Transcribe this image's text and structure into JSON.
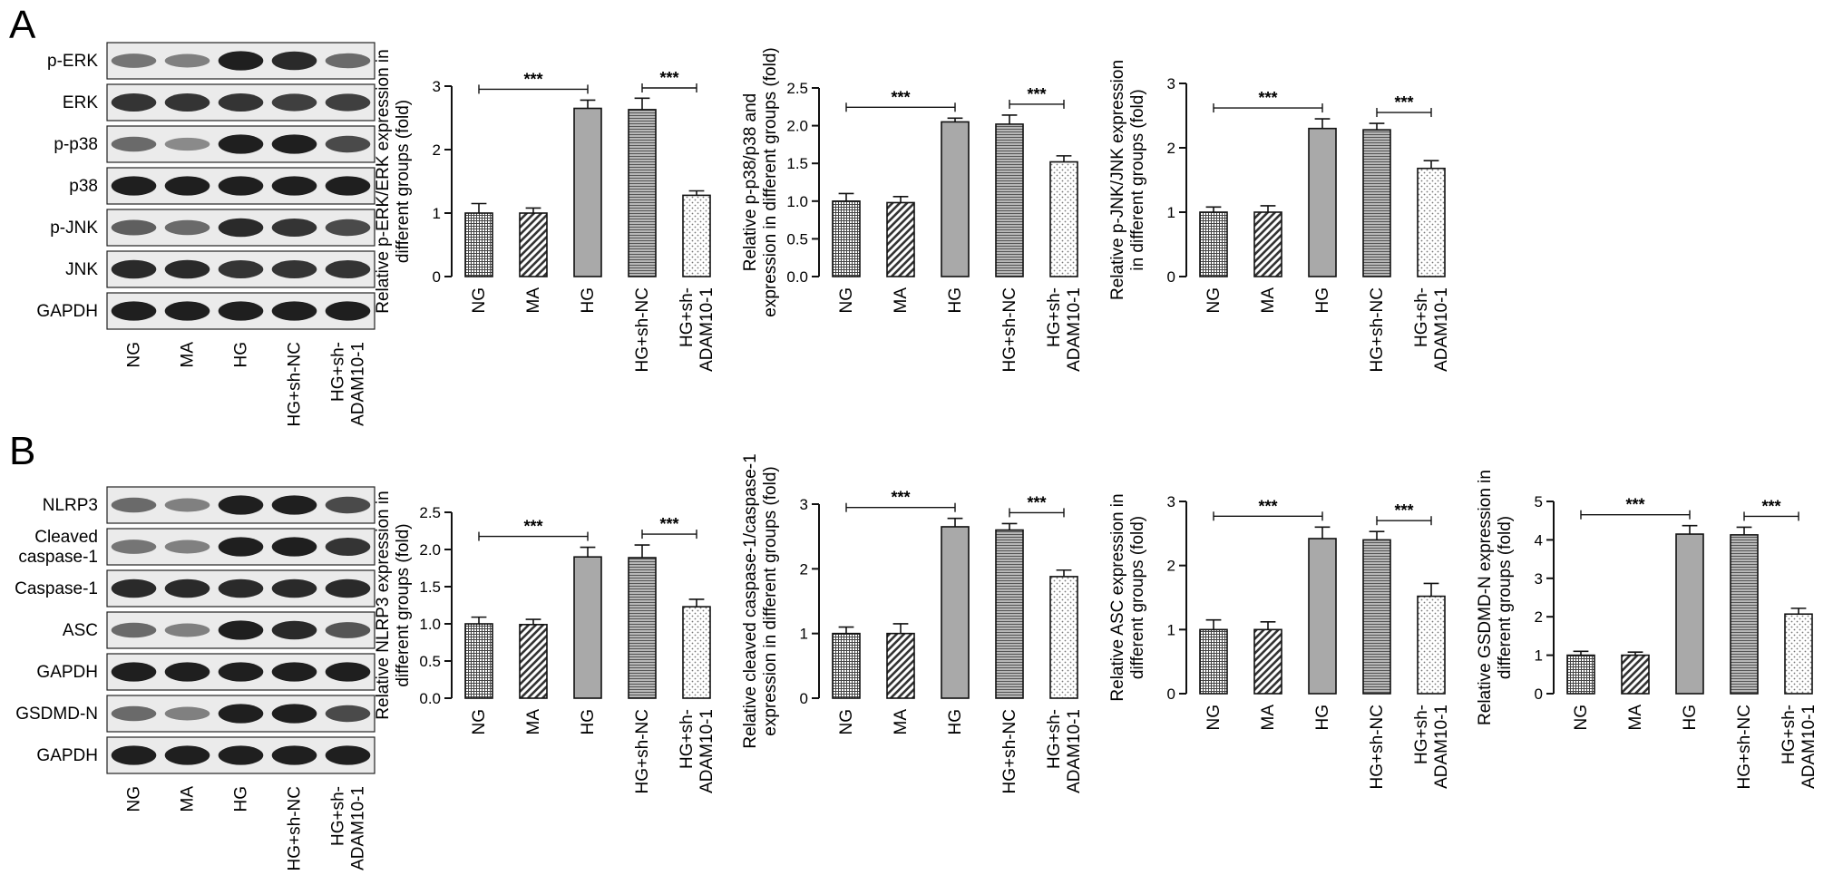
{
  "figure": {
    "panels": [
      "A",
      "B"
    ]
  },
  "blots": [
    {
      "panel": "A",
      "rows": [
        "p-ERK",
        "ERK",
        "p-p38",
        "p38",
        "p-JNK",
        "JNK",
        "GAPDH"
      ],
      "lanes": [
        [
          "NG"
        ],
        [
          "MA"
        ],
        [
          "HG"
        ],
        [
          "HG+sh-NC"
        ],
        [
          "HG+sh-",
          "ADAM10-1"
        ]
      ],
      "intensity": [
        [
          0.55,
          0.5,
          0.95,
          0.9,
          0.6
        ],
        [
          0.85,
          0.85,
          0.85,
          0.8,
          0.8
        ],
        [
          0.6,
          0.45,
          0.95,
          0.95,
          0.75
        ],
        [
          0.95,
          0.95,
          0.95,
          0.95,
          0.95
        ],
        [
          0.65,
          0.6,
          0.9,
          0.85,
          0.75
        ],
        [
          0.9,
          0.9,
          0.85,
          0.85,
          0.85
        ],
        [
          0.95,
          0.95,
          0.95,
          0.95,
          0.95
        ]
      ]
    },
    {
      "panel": "B",
      "rows": [
        "NLRP3",
        "Cleaved caspase-1",
        "Caspase-1",
        "ASC",
        "GAPDH",
        "GSDMD-N",
        "GAPDH"
      ],
      "row_lines": [
        [
          "NLRP3"
        ],
        [
          "Cleaved",
          "caspase-1"
        ],
        [
          "Caspase-1"
        ],
        [
          "ASC"
        ],
        [
          "GAPDH"
        ],
        [
          "GSDMD-N"
        ],
        [
          "GAPDH"
        ]
      ],
      "lanes": [
        [
          "NG"
        ],
        [
          "MA"
        ],
        [
          "HG"
        ],
        [
          "HG+sh-NC"
        ],
        [
          "HG+sh-",
          "ADAM10-1"
        ]
      ],
      "intensity": [
        [
          0.6,
          0.5,
          0.95,
          0.95,
          0.75
        ],
        [
          0.55,
          0.5,
          0.95,
          0.95,
          0.85
        ],
        [
          0.9,
          0.9,
          0.9,
          0.9,
          0.9
        ],
        [
          0.6,
          0.5,
          0.95,
          0.9,
          0.7
        ],
        [
          0.95,
          0.95,
          0.95,
          0.95,
          0.95
        ],
        [
          0.6,
          0.5,
          0.95,
          0.95,
          0.75
        ],
        [
          0.95,
          0.95,
          0.95,
          0.95,
          0.95
        ]
      ]
    }
  ],
  "chart_data": [
    {
      "type": "bar",
      "panel": "A",
      "categories": [
        "NG",
        "MA",
        "HG",
        "HG+sh-NC",
        "HG+sh-ADAM10-1"
      ],
      "category_lines": [
        [
          "NG"
        ],
        [
          "MA"
        ],
        [
          "HG"
        ],
        [
          "HG+sh-NC"
        ],
        [
          "HG+sh-",
          "ADAM10-1"
        ]
      ],
      "values": [
        1.0,
        1.0,
        2.65,
        2.63,
        1.28
      ],
      "errors": [
        0.15,
        0.08,
        0.13,
        0.18,
        0.07
      ],
      "ylabel": [
        "Relative p-ERK/ERK expression in",
        "different groups (fold)"
      ],
      "ylim": [
        0,
        3
      ],
      "yticks": [
        0,
        1,
        2,
        3
      ],
      "tick_decimals": 0,
      "significance": [
        {
          "from": 0,
          "to": 2,
          "label": "***"
        },
        {
          "from": 3,
          "to": 4,
          "label": "***"
        }
      ]
    },
    {
      "type": "bar",
      "panel": "A",
      "categories": [
        "NG",
        "MA",
        "HG",
        "HG+sh-NC",
        "HG+sh-ADAM10-1"
      ],
      "category_lines": [
        [
          "NG"
        ],
        [
          "MA"
        ],
        [
          "HG"
        ],
        [
          "HG+sh-NC"
        ],
        [
          "HG+sh-",
          "ADAM10-1"
        ]
      ],
      "values": [
        1.0,
        0.98,
        2.05,
        2.02,
        1.52
      ],
      "errors": [
        0.1,
        0.08,
        0.05,
        0.12,
        0.08
      ],
      "ylabel": [
        "Relative p-p38/p38 and",
        "expression in different groups (fold)"
      ],
      "ylim": [
        0,
        2.5
      ],
      "yticks": [
        0,
        0.5,
        1.0,
        1.5,
        2.0,
        2.5
      ],
      "tick_decimals": 1,
      "significance": [
        {
          "from": 0,
          "to": 2,
          "label": "***"
        },
        {
          "from": 3,
          "to": 4,
          "label": "***"
        }
      ]
    },
    {
      "type": "bar",
      "panel": "A",
      "categories": [
        "NG",
        "MA",
        "HG",
        "HG+sh-NC",
        "HG+sh-ADAM10-1"
      ],
      "category_lines": [
        [
          "NG"
        ],
        [
          "MA"
        ],
        [
          "HG"
        ],
        [
          "HG+sh-NC"
        ],
        [
          "HG+sh-",
          "ADAM10-1"
        ]
      ],
      "values": [
        1.0,
        1.0,
        2.3,
        2.28,
        1.68
      ],
      "errors": [
        0.08,
        0.1,
        0.15,
        0.1,
        0.12
      ],
      "ylabel": [
        "Relative p-JNK/JNK expression",
        "in different groups (fold)"
      ],
      "ylim": [
        0,
        3
      ],
      "yticks": [
        0,
        1,
        2,
        3
      ],
      "tick_decimals": 0,
      "significance": [
        {
          "from": 0,
          "to": 2,
          "label": "***"
        },
        {
          "from": 3,
          "to": 4,
          "label": "***"
        }
      ]
    },
    {
      "type": "bar",
      "panel": "B",
      "categories": [
        "NG",
        "MA",
        "HG",
        "HG+sh-NC",
        "HG+sh-ADAM10-1"
      ],
      "category_lines": [
        [
          "NG"
        ],
        [
          "MA"
        ],
        [
          "HG"
        ],
        [
          "HG+sh-NC"
        ],
        [
          "HG+sh-",
          "ADAM10-1"
        ]
      ],
      "values": [
        1.0,
        0.99,
        1.9,
        1.89,
        1.23
      ],
      "errors": [
        0.09,
        0.07,
        0.13,
        0.17,
        0.1
      ],
      "ylabel": [
        "Relative NLRP3 expression in",
        "different groups (fold)"
      ],
      "ylim": [
        0,
        2.5
      ],
      "yticks": [
        0,
        0.5,
        1.0,
        1.5,
        2.0,
        2.5
      ],
      "tick_decimals": 1,
      "significance": [
        {
          "from": 0,
          "to": 2,
          "label": "***"
        },
        {
          "from": 3,
          "to": 4,
          "label": "***"
        }
      ]
    },
    {
      "type": "bar",
      "panel": "B",
      "categories": [
        "NG",
        "MA",
        "HG",
        "HG+sh-NC",
        "HG+sh-ADAM10-1"
      ],
      "category_lines": [
        [
          "NG"
        ],
        [
          "MA"
        ],
        [
          "HG"
        ],
        [
          "HG+sh-NC"
        ],
        [
          "HG+sh-",
          "ADAM10-1"
        ]
      ],
      "values": [
        1.0,
        1.0,
        2.65,
        2.6,
        1.88
      ],
      "errors": [
        0.1,
        0.15,
        0.13,
        0.1,
        0.1
      ],
      "ylabel": [
        "Relative cleaved caspase-1/caspase-1",
        "expression in different groups (fold)"
      ],
      "ylim": [
        0,
        3
      ],
      "yticks": [
        0,
        1,
        2,
        3
      ],
      "tick_decimals": 0,
      "significance": [
        {
          "from": 0,
          "to": 2,
          "label": "***"
        },
        {
          "from": 3,
          "to": 4,
          "label": "***"
        }
      ]
    },
    {
      "type": "bar",
      "panel": "B",
      "categories": [
        "NG",
        "MA",
        "HG",
        "HG+sh-NC",
        "HG+sh-ADAM10-1"
      ],
      "category_lines": [
        [
          "NG"
        ],
        [
          "MA"
        ],
        [
          "HG"
        ],
        [
          "HG+sh-NC"
        ],
        [
          "HG+sh-",
          "ADAM10-1"
        ]
      ],
      "values": [
        1.0,
        1.0,
        2.42,
        2.4,
        1.52
      ],
      "errors": [
        0.15,
        0.12,
        0.18,
        0.13,
        0.2
      ],
      "ylabel": [
        "Relative ASC expression in",
        "different groups (fold)"
      ],
      "ylim": [
        0,
        3
      ],
      "yticks": [
        0,
        1,
        2,
        3
      ],
      "tick_decimals": 0,
      "significance": [
        {
          "from": 0,
          "to": 2,
          "label": "***"
        },
        {
          "from": 3,
          "to": 4,
          "label": "***"
        }
      ]
    },
    {
      "type": "bar",
      "panel": "B",
      "categories": [
        "NG",
        "MA",
        "HG",
        "HG+sh-NC",
        "HG+sh-ADAM10-1"
      ],
      "category_lines": [
        [
          "NG"
        ],
        [
          "MA"
        ],
        [
          "HG"
        ],
        [
          "HG+sh-NC"
        ],
        [
          "HG+sh-",
          "ADAM10-1"
        ]
      ],
      "values": [
        1.0,
        1.0,
        4.15,
        4.13,
        2.07
      ],
      "errors": [
        0.1,
        0.08,
        0.22,
        0.2,
        0.15
      ],
      "ylabel": [
        "Relative GSDMD-N expression in",
        "different groups (fold)"
      ],
      "ylim": [
        0,
        5
      ],
      "yticks": [
        0,
        1,
        2,
        3,
        4,
        5
      ],
      "tick_decimals": 0,
      "significance": [
        {
          "from": 0,
          "to": 2,
          "label": "***"
        },
        {
          "from": 3,
          "to": 4,
          "label": "***"
        }
      ]
    }
  ]
}
